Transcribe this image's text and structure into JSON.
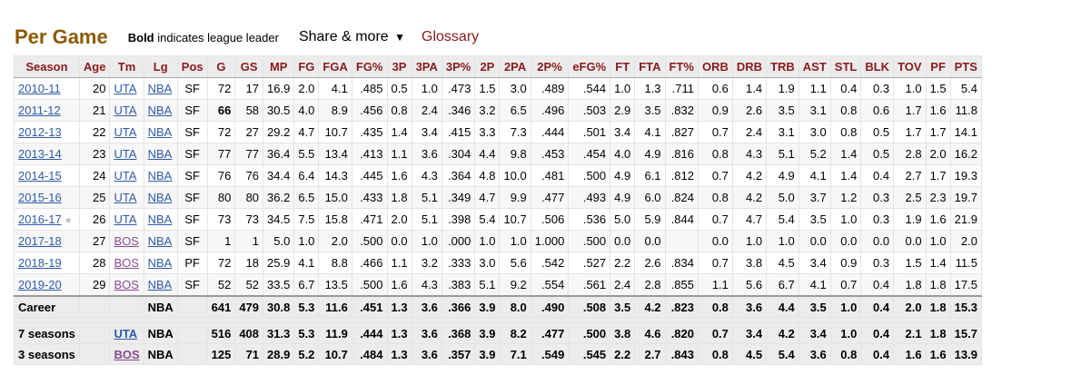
{
  "header": {
    "title": "Per Game",
    "note_bold": "Bold",
    "note_rest": " indicates league leader",
    "share_label": "Share & more",
    "share_caret": "▼",
    "glossary_label": "Glossary"
  },
  "columns": [
    "Season",
    "Age",
    "Tm",
    "Lg",
    "Pos",
    "G",
    "GS",
    "MP",
    "FG",
    "FGA",
    "FG%",
    "3P",
    "3PA",
    "3P%",
    "2P",
    "2PA",
    "2P%",
    "eFG%",
    "FT",
    "FTA",
    "FT%",
    "ORB",
    "DRB",
    "TRB",
    "AST",
    "STL",
    "BLK",
    "TOV",
    "PF",
    "PTS"
  ],
  "rows": [
    [
      "2010-11",
      "20",
      "UTA",
      "NBA",
      "SF",
      "72",
      "17",
      "16.9",
      "2.0",
      "4.1",
      ".485",
      "0.5",
      "1.0",
      ".473",
      "1.5",
      "3.0",
      ".489",
      ".544",
      "1.0",
      "1.3",
      ".711",
      "0.6",
      "1.4",
      "1.9",
      "1.1",
      "0.4",
      "0.3",
      "1.0",
      "1.5",
      "5.4"
    ],
    [
      "2011-12",
      "21",
      "UTA",
      "NBA",
      "SF",
      "66",
      "58",
      "30.5",
      "4.0",
      "8.9",
      ".456",
      "0.8",
      "2.4",
      ".346",
      "3.2",
      "6.5",
      ".496",
      ".503",
      "2.9",
      "3.5",
      ".832",
      "0.9",
      "2.6",
      "3.5",
      "3.1",
      "0.8",
      "0.6",
      "1.7",
      "1.6",
      "11.8"
    ],
    [
      "2012-13",
      "22",
      "UTA",
      "NBA",
      "SF",
      "72",
      "27",
      "29.2",
      "4.7",
      "10.7",
      ".435",
      "1.4",
      "3.4",
      ".415",
      "3.3",
      "7.3",
      ".444",
      ".501",
      "3.4",
      "4.1",
      ".827",
      "0.7",
      "2.4",
      "3.1",
      "3.0",
      "0.8",
      "0.5",
      "1.7",
      "1.7",
      "14.1"
    ],
    [
      "2013-14",
      "23",
      "UTA",
      "NBA",
      "SF",
      "77",
      "77",
      "36.4",
      "5.5",
      "13.4",
      ".413",
      "1.1",
      "3.6",
      ".304",
      "4.4",
      "9.8",
      ".453",
      ".454",
      "4.0",
      "4.9",
      ".816",
      "0.8",
      "4.3",
      "5.1",
      "5.2",
      "1.4",
      "0.5",
      "2.8",
      "2.0",
      "16.2"
    ],
    [
      "2014-15",
      "24",
      "UTA",
      "NBA",
      "SF",
      "76",
      "76",
      "34.4",
      "6.4",
      "14.3",
      ".445",
      "1.6",
      "4.3",
      ".364",
      "4.8",
      "10.0",
      ".481",
      ".500",
      "4.9",
      "6.1",
      ".812",
      "0.7",
      "4.2",
      "4.9",
      "4.1",
      "1.4",
      "0.4",
      "2.7",
      "1.7",
      "19.3"
    ],
    [
      "2015-16",
      "25",
      "UTA",
      "NBA",
      "SF",
      "80",
      "80",
      "36.2",
      "6.5",
      "15.0",
      ".433",
      "1.8",
      "5.1",
      ".349",
      "4.7",
      "9.9",
      ".477",
      ".493",
      "4.9",
      "6.0",
      ".824",
      "0.8",
      "4.2",
      "5.0",
      "3.7",
      "1.2",
      "0.3",
      "2.5",
      "2.3",
      "19.7"
    ],
    [
      "2016-17",
      "26",
      "UTA",
      "NBA",
      "SF",
      "73",
      "73",
      "34.5",
      "7.5",
      "15.8",
      ".471",
      "2.0",
      "5.1",
      ".398",
      "5.4",
      "10.7",
      ".506",
      ".536",
      "5.0",
      "5.9",
      ".844",
      "0.7",
      "4.7",
      "5.4",
      "3.5",
      "1.0",
      "0.3",
      "1.9",
      "1.6",
      "21.9"
    ],
    [
      "2017-18",
      "27",
      "BOS",
      "NBA",
      "SF",
      "1",
      "1",
      "5.0",
      "1.0",
      "2.0",
      ".500",
      "0.0",
      "1.0",
      ".000",
      "1.0",
      "1.0",
      "1.000",
      ".500",
      "0.0",
      "0.0",
      "",
      "0.0",
      "1.0",
      "1.0",
      "0.0",
      "0.0",
      "0.0",
      "0.0",
      "1.0",
      "2.0"
    ],
    [
      "2018-19",
      "28",
      "BOS",
      "NBA",
      "PF",
      "72",
      "18",
      "25.9",
      "4.1",
      "8.8",
      ".466",
      "1.1",
      "3.2",
      ".333",
      "3.0",
      "5.6",
      ".542",
      ".527",
      "2.2",
      "2.6",
      ".834",
      "0.7",
      "3.8",
      "4.5",
      "3.4",
      "0.9",
      "0.3",
      "1.5",
      "1.4",
      "11.5"
    ],
    [
      "2019-20",
      "29",
      "BOS",
      "NBA",
      "SF",
      "52",
      "52",
      "33.5",
      "6.7",
      "13.5",
      ".500",
      "1.6",
      "4.3",
      ".383",
      "5.1",
      "9.2",
      ".554",
      ".561",
      "2.4",
      "2.8",
      ".855",
      "1.1",
      "5.6",
      "6.7",
      "4.1",
      "0.7",
      "0.4",
      "1.8",
      "1.8",
      "17.5"
    ]
  ],
  "row_flags": {
    "allstar_row": 6,
    "allstar_icon": "star-icon",
    "leader_cell": {
      "row": 1,
      "col": 5
    }
  },
  "totals": [
    [
      "Career",
      "",
      "",
      "NBA",
      "",
      "641",
      "479",
      "30.8",
      "5.3",
      "11.6",
      ".451",
      "1.3",
      "3.6",
      ".366",
      "3.9",
      "8.0",
      ".490",
      ".508",
      "3.5",
      "4.2",
      ".823",
      "0.8",
      "3.6",
      "4.4",
      "3.5",
      "1.0",
      "0.4",
      "2.0",
      "1.8",
      "15.3"
    ],
    [
      "7 seasons",
      "",
      "UTA",
      "NBA",
      "",
      "516",
      "408",
      "31.3",
      "5.3",
      "11.9",
      ".444",
      "1.3",
      "3.6",
      ".368",
      "3.9",
      "8.2",
      ".477",
      ".500",
      "3.8",
      "4.6",
      ".820",
      "0.7",
      "3.4",
      "4.2",
      "3.4",
      "1.0",
      "0.4",
      "2.1",
      "1.8",
      "15.7"
    ],
    [
      "3 seasons",
      "",
      "BOS",
      "NBA",
      "",
      "125",
      "71",
      "28.9",
      "5.2",
      "10.7",
      ".484",
      "1.3",
      "3.6",
      ".357",
      "3.9",
      "7.1",
      ".549",
      ".545",
      "2.2",
      "2.7",
      ".843",
      "0.8",
      "4.5",
      "5.4",
      "3.6",
      "0.8",
      "0.4",
      "1.6",
      "1.6",
      "13.9"
    ]
  ],
  "colors": {
    "title": "#8a5a07",
    "header_text": "#8b1a1a",
    "link_blue": "#2f5ba8",
    "link_visited": "#8a4a8f"
  }
}
